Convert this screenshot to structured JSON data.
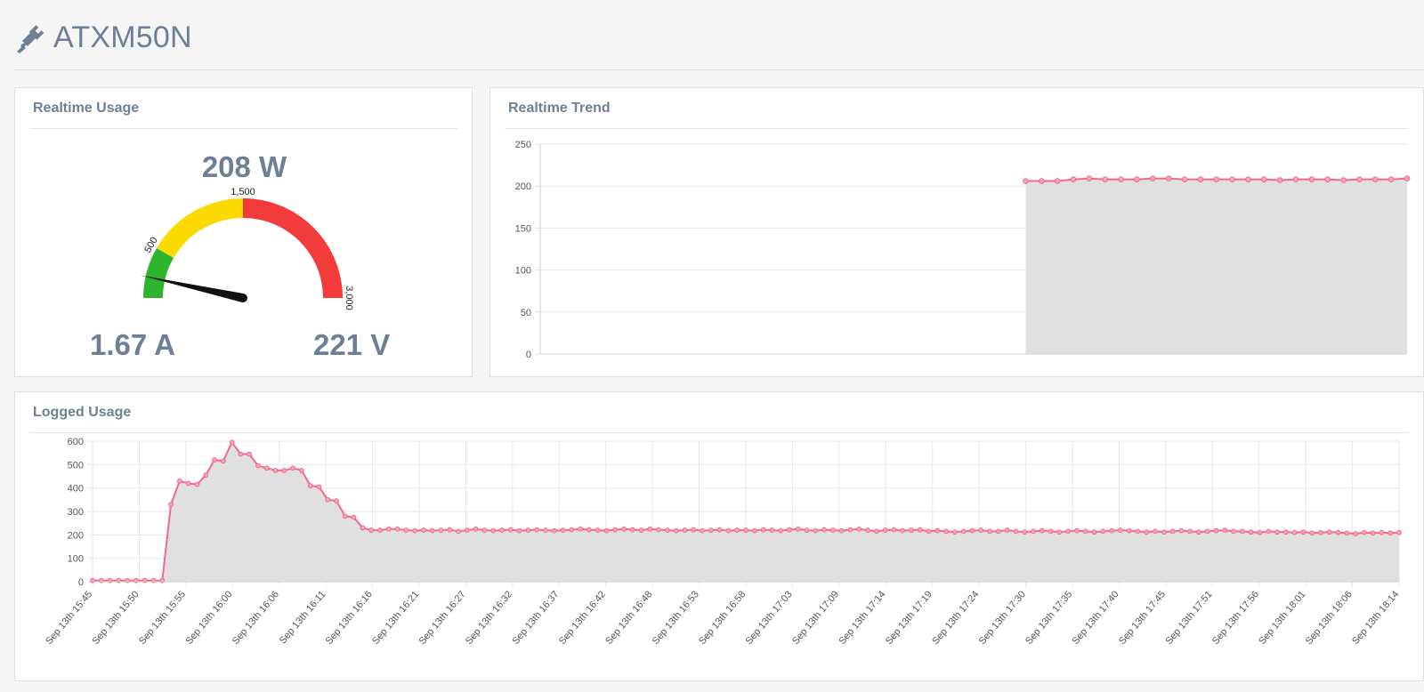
{
  "header": {
    "title": "ATXM50N",
    "icon": "plug-icon"
  },
  "usage": {
    "title": "Realtime Usage",
    "power": "208 W",
    "current": "1.67 A",
    "voltage": "221 V",
    "gauge": {
      "min": 0,
      "max": 3000,
      "value": 208,
      "bands": [
        {
          "from": 0,
          "to": 500,
          "color": "#2eb52e"
        },
        {
          "from": 500,
          "to": 1500,
          "color": "#fcd900"
        },
        {
          "from": 1500,
          "to": 3000,
          "color": "#f23b3b"
        }
      ],
      "labels": [
        "500",
        "1,500",
        "3,000"
      ]
    }
  },
  "trend": {
    "title": "Realtime Trend",
    "chart_data": {
      "type": "area",
      "ylim": [
        0,
        250
      ],
      "yticks": [
        "0",
        "50",
        "100",
        "150",
        "200",
        "250"
      ],
      "start_fraction": 0.56,
      "values": [
        206,
        206,
        206,
        208,
        209,
        208,
        208,
        208,
        209,
        209,
        208,
        208,
        208,
        208,
        208,
        208,
        207,
        208,
        208,
        208,
        207,
        208,
        208,
        208,
        209
      ],
      "line_color": "#f06a8a",
      "fill_color": "#e0e0e0",
      "grid": true
    }
  },
  "logged": {
    "title": "Logged Usage",
    "chart_data": {
      "type": "area",
      "ylim": [
        0,
        600
      ],
      "yticks": [
        "0",
        "100",
        "200",
        "300",
        "400",
        "500",
        "600"
      ],
      "x_labels": [
        "Sep 13th 15:45",
        "Sep 13th 15:50",
        "Sep 13th 15:55",
        "Sep 13th 16:00",
        "Sep 13th 16:06",
        "Sep 13th 16:11",
        "Sep 13th 16:16",
        "Sep 13th 16:21",
        "Sep 13th 16:27",
        "Sep 13th 16:32",
        "Sep 13th 16:37",
        "Sep 13th 16:42",
        "Sep 13th 16:48",
        "Sep 13th 16:53",
        "Sep 13th 16:58",
        "Sep 13th 17:03",
        "Sep 13th 17:09",
        "Sep 13th 17:14",
        "Sep 13th 17:19",
        "Sep 13th 17:24",
        "Sep 13th 17:30",
        "Sep 13th 17:35",
        "Sep 13th 17:40",
        "Sep 13th 17:45",
        "Sep 13th 17:51",
        "Sep 13th 17:56",
        "Sep 13th 18:01",
        "Sep 13th 18:06",
        "Sep 13th 18:14"
      ],
      "values": [
        5,
        5,
        5,
        5,
        5,
        5,
        5,
        5,
        5,
        330,
        430,
        420,
        415,
        455,
        520,
        515,
        595,
        545,
        545,
        495,
        485,
        475,
        475,
        485,
        475,
        410,
        405,
        350,
        345,
        280,
        275,
        230,
        220,
        220,
        225,
        225,
        220,
        218,
        220,
        218,
        220,
        222,
        215,
        220,
        225,
        220,
        218,
        220,
        222,
        218,
        220,
        222,
        220,
        218,
        220,
        222,
        225,
        222,
        220,
        218,
        222,
        225,
        222,
        220,
        225,
        222,
        220,
        218,
        220,
        222,
        218,
        220,
        222,
        218,
        220,
        220,
        218,
        222,
        220,
        218,
        222,
        225,
        220,
        218,
        222,
        220,
        218,
        222,
        225,
        220,
        215,
        220,
        222,
        218,
        220,
        222,
        215,
        218,
        215,
        212,
        215,
        218,
        220,
        215,
        215,
        220,
        215,
        212,
        215,
        218,
        215,
        212,
        215,
        218,
        215,
        212,
        215,
        218,
        220,
        218,
        215,
        212,
        215,
        212,
        215,
        218,
        215,
        212,
        215,
        218,
        220,
        215,
        215,
        212,
        210,
        215,
        212,
        212,
        210,
        212,
        208,
        210,
        212,
        210,
        208,
        205,
        210,
        208,
        210,
        208,
        210
      ],
      "line_color": "#f06a8a",
      "fill_color": "#e0e0e0",
      "grid": true
    }
  }
}
